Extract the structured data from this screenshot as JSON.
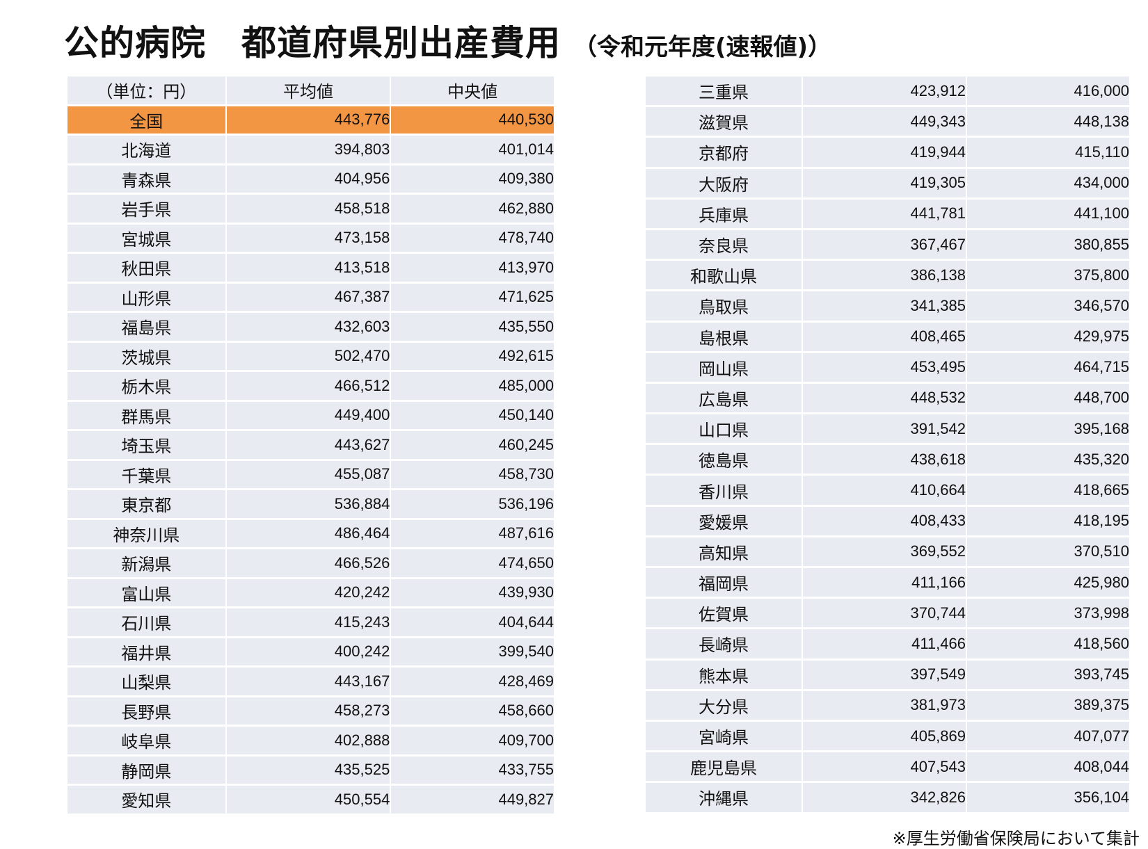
{
  "title": {
    "main": "公的病院　都道府県別出産費用",
    "sub": "（令和元年度(速報値)）"
  },
  "headers": {
    "unit": "（単位：円）",
    "mean": "平均値",
    "median": "中央値"
  },
  "national": {
    "name": "全国",
    "mean": "443,776",
    "median": "440,530"
  },
  "left_rows": [
    {
      "name": "北海道",
      "mean": "394,803",
      "median": "401,014"
    },
    {
      "name": "青森県",
      "mean": "404,956",
      "median": "409,380"
    },
    {
      "name": "岩手県",
      "mean": "458,518",
      "median": "462,880"
    },
    {
      "name": "宮城県",
      "mean": "473,158",
      "median": "478,740"
    },
    {
      "name": "秋田県",
      "mean": "413,518",
      "median": "413,970"
    },
    {
      "name": "山形県",
      "mean": "467,387",
      "median": "471,625"
    },
    {
      "name": "福島県",
      "mean": "432,603",
      "median": "435,550"
    },
    {
      "name": "茨城県",
      "mean": "502,470",
      "median": "492,615"
    },
    {
      "name": "栃木県",
      "mean": "466,512",
      "median": "485,000"
    },
    {
      "name": "群馬県",
      "mean": "449,400",
      "median": "450,140"
    },
    {
      "name": "埼玉県",
      "mean": "443,627",
      "median": "460,245"
    },
    {
      "name": "千葉県",
      "mean": "455,087",
      "median": "458,730"
    },
    {
      "name": "東京都",
      "mean": "536,884",
      "median": "536,196"
    },
    {
      "name": "神奈川県",
      "mean": "486,464",
      "median": "487,616"
    },
    {
      "name": "新潟県",
      "mean": "466,526",
      "median": "474,650"
    },
    {
      "name": "富山県",
      "mean": "420,242",
      "median": "439,930"
    },
    {
      "name": "石川県",
      "mean": "415,243",
      "median": "404,644"
    },
    {
      "name": "福井県",
      "mean": "400,242",
      "median": "399,540"
    },
    {
      "name": "山梨県",
      "mean": "443,167",
      "median": "428,469"
    },
    {
      "name": "長野県",
      "mean": "458,273",
      "median": "458,660"
    },
    {
      "name": "岐阜県",
      "mean": "402,888",
      "median": "409,700"
    },
    {
      "name": "静岡県",
      "mean": "435,525",
      "median": "433,755"
    },
    {
      "name": "愛知県",
      "mean": "450,554",
      "median": "449,827"
    }
  ],
  "right_rows": [
    {
      "name": "三重県",
      "mean": "423,912",
      "median": "416,000"
    },
    {
      "name": "滋賀県",
      "mean": "449,343",
      "median": "448,138"
    },
    {
      "name": "京都府",
      "mean": "419,944",
      "median": "415,110"
    },
    {
      "name": "大阪府",
      "mean": "419,305",
      "median": "434,000"
    },
    {
      "name": "兵庫県",
      "mean": "441,781",
      "median": "441,100"
    },
    {
      "name": "奈良県",
      "mean": "367,467",
      "median": "380,855"
    },
    {
      "name": "和歌山県",
      "mean": "386,138",
      "median": "375,800"
    },
    {
      "name": "鳥取県",
      "mean": "341,385",
      "median": "346,570"
    },
    {
      "name": "島根県",
      "mean": "408,465",
      "median": "429,975"
    },
    {
      "name": "岡山県",
      "mean": "453,495",
      "median": "464,715"
    },
    {
      "name": "広島県",
      "mean": "448,532",
      "median": "448,700"
    },
    {
      "name": "山口県",
      "mean": "391,542",
      "median": "395,168"
    },
    {
      "name": "徳島県",
      "mean": "438,618",
      "median": "435,320"
    },
    {
      "name": "香川県",
      "mean": "410,664",
      "median": "418,665"
    },
    {
      "name": "愛媛県",
      "mean": "408,433",
      "median": "418,195"
    },
    {
      "name": "高知県",
      "mean": "369,552",
      "median": "370,510"
    },
    {
      "name": "福岡県",
      "mean": "411,166",
      "median": "425,980"
    },
    {
      "name": "佐賀県",
      "mean": "370,744",
      "median": "373,998"
    },
    {
      "name": "長崎県",
      "mean": "411,466",
      "median": "418,560"
    },
    {
      "name": "熊本県",
      "mean": "397,549",
      "median": "393,745"
    },
    {
      "name": "大分県",
      "mean": "381,973",
      "median": "389,375"
    },
    {
      "name": "宮崎県",
      "mean": "405,869",
      "median": "407,077"
    },
    {
      "name": "鹿児島県",
      "mean": "407,543",
      "median": "408,044"
    },
    {
      "name": "沖縄県",
      "mean": "342,826",
      "median": "356,104"
    }
  ],
  "footnote": "※厚生労働省保険局において集計",
  "colors": {
    "national_row": "#f39644",
    "cell_bg": "#e9ebf2"
  }
}
